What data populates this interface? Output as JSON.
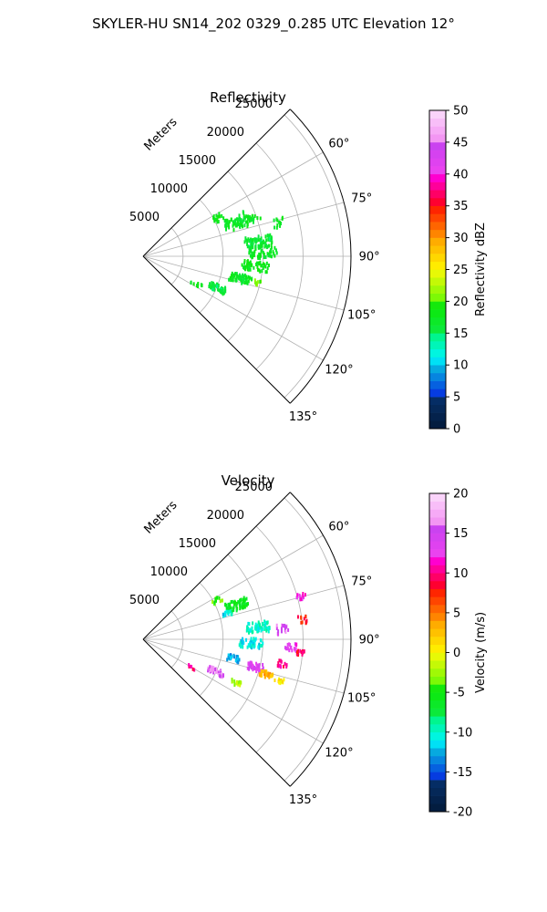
{
  "figure": {
    "suptitle": "SKYLER-HU  SN14_202  0329_0.285 UTC Elevation 12°"
  },
  "colors": {
    "grid": "#b0b0b0",
    "axis": "#000000"
  },
  "chart_data": [
    {
      "type": "polar-sector",
      "title": "Reflectivity",
      "radial_label": "Meters",
      "radial_ticks": [
        5000,
        10000,
        15000,
        20000,
        25000
      ],
      "radial_tick_labels": [
        "5000",
        "10000",
        "15000",
        "20000",
        "25000"
      ],
      "r_max": 26000,
      "theta_range_deg": [
        45,
        135
      ],
      "theta_ticks_deg": [
        60,
        75,
        90,
        105,
        120,
        135
      ],
      "theta_tick_labels": [
        "60°",
        "75°",
        "90°",
        "105°",
        "120°",
        "135°"
      ],
      "colorbar": {
        "label": "Reflectivity dBZ",
        "range": [
          0,
          50
        ],
        "ticks": [
          0,
          5,
          10,
          15,
          20,
          25,
          30,
          35,
          40,
          45,
          50
        ],
        "tick_labels": [
          "0",
          "5",
          "10",
          "15",
          "20",
          "25",
          "30",
          "35",
          "40",
          "45",
          "50"
        ]
      },
      "clusters": [
        {
          "theta": 63,
          "r": 10500,
          "dtheta": 2.5,
          "dr": 900,
          "value": 18,
          "density": 14
        },
        {
          "theta": 70,
          "r": 12500,
          "dtheta": 4,
          "dr": 1600,
          "value": 17,
          "density": 70
        },
        {
          "theta": 71,
          "r": 14800,
          "dtheta": 2,
          "dr": 800,
          "value": 17,
          "density": 14
        },
        {
          "theta": 76,
          "r": 17500,
          "dtheta": 2,
          "dr": 700,
          "value": 17,
          "density": 12
        },
        {
          "theta": 83,
          "r": 14500,
          "dtheta": 3,
          "dr": 1800,
          "value": 16,
          "density": 70
        },
        {
          "theta": 88,
          "r": 15000,
          "dtheta": 3,
          "dr": 1800,
          "value": 17,
          "density": 55
        },
        {
          "theta": 95,
          "r": 14000,
          "dtheta": 2.5,
          "dr": 1800,
          "value": 18,
          "density": 55
        },
        {
          "theta": 103,
          "r": 12500,
          "dtheta": 2.5,
          "dr": 1400,
          "value": 17,
          "density": 60
        },
        {
          "theta": 103,
          "r": 14800,
          "dtheta": 1.5,
          "dr": 600,
          "value": 21,
          "density": 10
        },
        {
          "theta": 113,
          "r": 10000,
          "dtheta": 2.5,
          "dr": 1200,
          "value": 16,
          "density": 45
        },
        {
          "theta": 118,
          "r": 7500,
          "dtheta": 2,
          "dr": 800,
          "value": 18,
          "density": 10
        }
      ]
    },
    {
      "type": "polar-sector",
      "title": "Velocity",
      "radial_label": "Meters",
      "radial_ticks": [
        5000,
        10000,
        15000,
        20000,
        25000
      ],
      "radial_tick_labels": [
        "5000",
        "10000",
        "15000",
        "20000",
        "25000"
      ],
      "r_max": 26000,
      "theta_range_deg": [
        45,
        135
      ],
      "theta_ticks_deg": [
        60,
        75,
        90,
        105,
        120,
        135
      ],
      "theta_tick_labels": [
        "60°",
        "75°",
        "90°",
        "105°",
        "120°",
        "135°"
      ],
      "colorbar": {
        "label": "Velocity (m/s)",
        "range": [
          -20,
          20
        ],
        "ticks": [
          -20,
          -15,
          -10,
          -5,
          0,
          5,
          10,
          15,
          20
        ],
        "tick_labels": [
          "-20",
          "-15",
          "-10",
          "-5",
          "0",
          "5",
          "10",
          "15",
          "20"
        ]
      },
      "clusters": [
        {
          "theta": 63,
          "r": 10500,
          "dtheta": 2.5,
          "dr": 900,
          "value": -4,
          "density": 14
        },
        {
          "theta": 70,
          "r": 12500,
          "dtheta": 3,
          "dr": 1400,
          "value": -6,
          "density": 60
        },
        {
          "theta": 73,
          "r": 11000,
          "dtheta": 1.5,
          "dr": 600,
          "value": -11,
          "density": 15
        },
        {
          "theta": 75,
          "r": 20500,
          "dtheta": 1.5,
          "dr": 600,
          "value": 12,
          "density": 12
        },
        {
          "theta": 84,
          "r": 14500,
          "dtheta": 2.5,
          "dr": 1500,
          "value": -10,
          "density": 60
        },
        {
          "theta": 86,
          "r": 17500,
          "dtheta": 2,
          "dr": 800,
          "value": 15,
          "density": 20
        },
        {
          "theta": 83,
          "r": 20000,
          "dtheta": 1.5,
          "dr": 600,
          "value": 8,
          "density": 12
        },
        {
          "theta": 92,
          "r": 13500,
          "dtheta": 2.5,
          "dr": 1500,
          "value": -11,
          "density": 50
        },
        {
          "theta": 93,
          "r": 18500,
          "dtheta": 1.5,
          "dr": 800,
          "value": 13,
          "density": 20
        },
        {
          "theta": 95,
          "r": 19800,
          "dtheta": 1.2,
          "dr": 500,
          "value": 9,
          "density": 15
        },
        {
          "theta": 100,
          "r": 17500,
          "dtheta": 1.5,
          "dr": 800,
          "value": 10,
          "density": 14
        },
        {
          "theta": 102,
          "r": 11500,
          "dtheta": 2,
          "dr": 800,
          "value": -13,
          "density": 30
        },
        {
          "theta": 104,
          "r": 14500,
          "dtheta": 2,
          "dr": 1000,
          "value": 14,
          "density": 40
        },
        {
          "theta": 106,
          "r": 16000,
          "dtheta": 1.5,
          "dr": 800,
          "value": 3,
          "density": 30
        },
        {
          "theta": 107,
          "r": 17800,
          "dtheta": 1.2,
          "dr": 600,
          "value": 1,
          "density": 12
        },
        {
          "theta": 114,
          "r": 10000,
          "dtheta": 2,
          "dr": 1100,
          "value": 16,
          "density": 40
        },
        {
          "theta": 115,
          "r": 12800,
          "dtheta": 1.5,
          "dr": 700,
          "value": -2,
          "density": 15
        },
        {
          "theta": 120,
          "r": 7000,
          "dtheta": 1,
          "dr": 500,
          "value": 10,
          "density": 6
        }
      ]
    }
  ]
}
